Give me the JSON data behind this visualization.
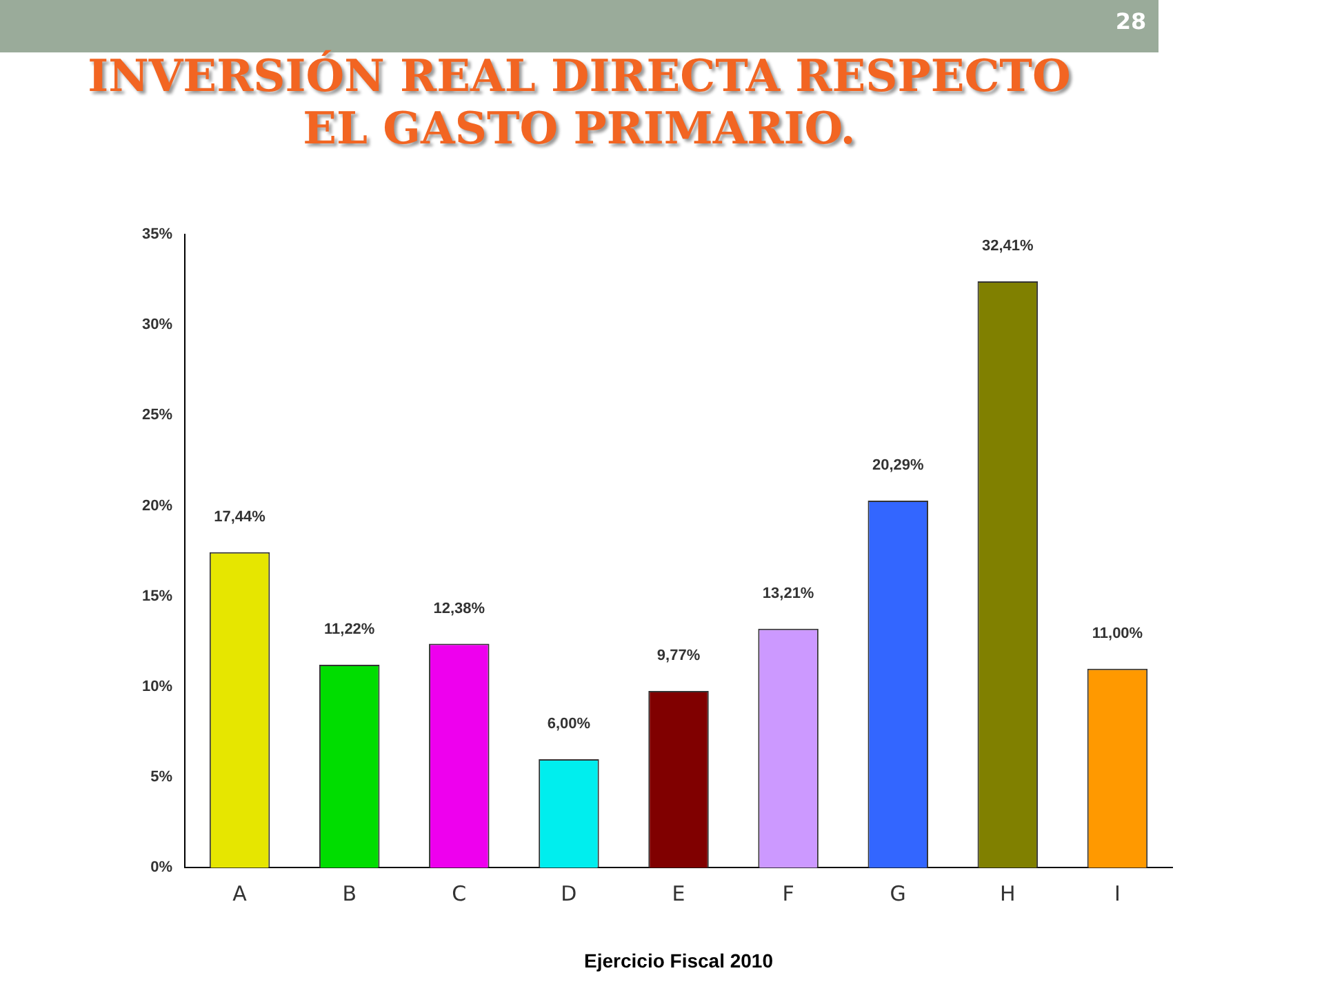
{
  "chart_data": {
    "type": "bar",
    "title": "INVERSIÓN REAL DIRECTA RESPECTO EL GASTO PRIMARIO.",
    "xlabel": "Ejercicio Fiscal 2010",
    "categories": [
      "A",
      "B",
      "C",
      "D",
      "E",
      "F",
      "G",
      "H",
      "I"
    ],
    "values": [
      17.44,
      11.22,
      12.38,
      6.0,
      9.77,
      13.21,
      20.29,
      32.41,
      11.0
    ],
    "value_labels": [
      "17,44%",
      "11,22%",
      "12,38%",
      "6,00%",
      "9,77%",
      "13,21%",
      "20,29%",
      "32,41%",
      "11,00%"
    ],
    "colors": [
      "#e6e600",
      "#00dd00",
      "#ee00ee",
      "#00eeee",
      "#800000",
      "#cc99ff",
      "#3366ff",
      "#808000",
      "#ff9900"
    ],
    "ylim": [
      0,
      35
    ],
    "yticks": [
      {
        "value": 0,
        "label": "0%"
      },
      {
        "value": 5,
        "label": "5%"
      },
      {
        "value": 10,
        "label": "10%"
      },
      {
        "value": 15,
        "label": "15%"
      },
      {
        "value": 20,
        "label": "20%"
      },
      {
        "value": 25,
        "label": "25%"
      },
      {
        "value": 30,
        "label": "30%"
      },
      {
        "value": 35,
        "label": "35%"
      }
    ],
    "annotations": [
      "28"
    ],
    "grid": false,
    "legend": false
  }
}
